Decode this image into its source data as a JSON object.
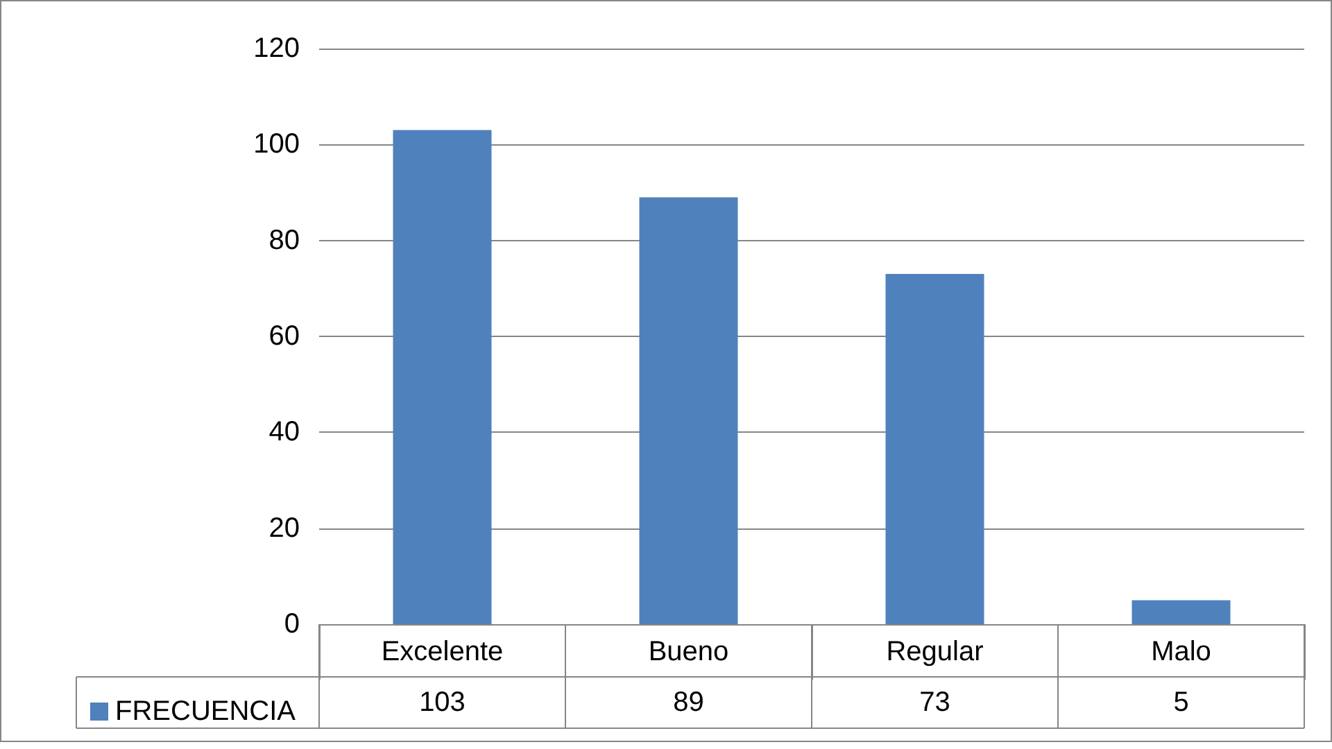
{
  "chart_data": {
    "type": "bar",
    "categories": [
      "Excelente",
      "Bueno",
      "Regular",
      "Malo"
    ],
    "series": [
      {
        "name": "FRECUENCIA",
        "color": "#4f81bd",
        "values": [
          103,
          89,
          73,
          5
        ]
      }
    ],
    "ylim": [
      0,
      120
    ],
    "yticks": [
      0,
      20,
      40,
      60,
      80,
      100,
      120
    ],
    "grid": "y",
    "legend": "bottom left",
    "data_labels": true
  }
}
